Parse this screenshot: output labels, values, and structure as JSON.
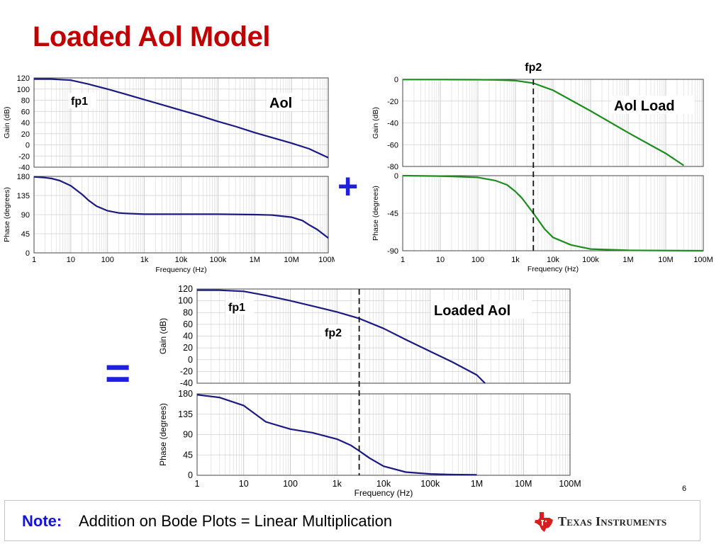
{
  "slide": {
    "title": "Loaded Aol Model",
    "page_number": "6",
    "note_label": "Note:",
    "note_text": "Addition on Bode Plots = Linear Multiplication",
    "plus_sign": "+",
    "equals_sign": "=",
    "logo_text": "Texas Instruments"
  },
  "chart_data": [
    {
      "id": "aol",
      "type": "line",
      "xlabel": "Frequency (Hz)",
      "xscale": "log",
      "xlim": [
        1,
        100000000
      ],
      "xticks": [
        {
          "v": 1,
          "label": "1"
        },
        {
          "v": 10,
          "label": "10"
        },
        {
          "v": 100,
          "label": "100"
        },
        {
          "v": 1000,
          "label": "1k"
        },
        {
          "v": 10000,
          "label": "10k"
        },
        {
          "v": 100000,
          "label": "100k"
        },
        {
          "v": 1000000,
          "label": "1M"
        },
        {
          "v": 10000000,
          "label": "10M"
        },
        {
          "v": 100000000,
          "label": "100M"
        }
      ],
      "color": "#1a1a80",
      "gain": {
        "ylabel": "Gain (dB)",
        "ylim": [
          -40,
          120
        ],
        "yticks": [
          -40,
          -20,
          0,
          20,
          40,
          60,
          80,
          100,
          120
        ],
        "x": [
          1,
          3,
          10,
          30,
          100,
          300,
          1000,
          3000,
          10000,
          30000,
          100000,
          300000,
          1000000,
          3000000,
          10000000,
          30000000,
          100000000
        ],
        "y": [
          118,
          118,
          116,
          109,
          100,
          91,
          81,
          72,
          62,
          53,
          42,
          33,
          22,
          13,
          3,
          -7,
          -23
        ]
      },
      "phase": {
        "ylabel": "Phase (degrees)",
        "ylim": [
          0,
          180
        ],
        "yticks": [
          0,
          45,
          90,
          135,
          180
        ],
        "x": [
          1,
          2,
          3,
          5,
          10,
          20,
          30,
          50,
          100,
          200,
          300,
          1000,
          10000,
          100000,
          1000000,
          3000000,
          10000000,
          20000000,
          30000000,
          50000000,
          100000000
        ],
        "y": [
          179,
          177,
          175,
          170,
          158,
          138,
          124,
          110,
          99,
          94,
          93,
          91,
          91,
          91,
          90,
          89,
          84,
          76,
          66,
          55,
          35
        ]
      },
      "annotations": [
        {
          "text": "fp1"
        },
        {
          "text": "Aol"
        }
      ]
    },
    {
      "id": "aol-load",
      "type": "line",
      "xlabel": "Frequency (Hz)",
      "xscale": "log",
      "xlim": [
        1,
        100000000
      ],
      "xticks": [
        {
          "v": 1,
          "label": "1"
        },
        {
          "v": 10,
          "label": "10"
        },
        {
          "v": 100,
          "label": "100"
        },
        {
          "v": 1000,
          "label": "1k"
        },
        {
          "v": 10000,
          "label": "10k"
        },
        {
          "v": 100000,
          "label": "100k"
        },
        {
          "v": 1000000,
          "label": "1M"
        },
        {
          "v": 10000000,
          "label": "10M"
        },
        {
          "v": 100000000,
          "label": "100M"
        }
      ],
      "color": "#1e8c1e",
      "gain": {
        "ylabel": "Gain (dB)",
        "ylim": [
          -80,
          0
        ],
        "yticks": [
          -80,
          -60,
          -40,
          -20,
          0
        ],
        "x": [
          1,
          10,
          100,
          300,
          1000,
          3000,
          10000,
          100000,
          1000000,
          10000000,
          30000000
        ],
        "y": [
          -0.2,
          -0.2,
          -0.3,
          -0.5,
          -1.2,
          -3.5,
          -10,
          -29,
          -49,
          -68,
          -79
        ]
      },
      "phase": {
        "ylabel": "Phase (degrees)",
        "ylim": [
          -90,
          0
        ],
        "yticks": [
          -90,
          -45,
          0
        ],
        "x": [
          1,
          10,
          100,
          300,
          600,
          1000,
          1500,
          3000,
          6000,
          10000,
          30000,
          100000,
          1000000,
          100000000
        ],
        "y": [
          0,
          -0.5,
          -2,
          -6,
          -11,
          -19,
          -27,
          -45,
          -64,
          -74,
          -83,
          -88,
          -89.5,
          -90
        ]
      },
      "markers": [
        {
          "text": "fp2",
          "x": 3000
        }
      ],
      "annotations": [
        {
          "text": "Aol Load"
        }
      ]
    },
    {
      "id": "loaded-aol",
      "type": "line",
      "xlabel": "Frequency (Hz)",
      "xscale": "log",
      "xlim": [
        1,
        100000000
      ],
      "xticks": [
        {
          "v": 1,
          "label": "1"
        },
        {
          "v": 10,
          "label": "10"
        },
        {
          "v": 100,
          "label": "100"
        },
        {
          "v": 1000,
          "label": "1k"
        },
        {
          "v": 10000,
          "label": "10k"
        },
        {
          "v": 100000,
          "label": "100k"
        },
        {
          "v": 1000000,
          "label": "1M"
        },
        {
          "v": 10000000,
          "label": "10M"
        },
        {
          "v": 100000000,
          "label": "100M"
        }
      ],
      "color": "#1a1a80",
      "gain": {
        "ylabel": "Gain (dB)",
        "ylim": [
          -40,
          120
        ],
        "yticks": [
          -40,
          -20,
          0,
          20,
          40,
          60,
          80,
          100,
          120
        ],
        "x": [
          1,
          3,
          10,
          30,
          100,
          300,
          1000,
          3000,
          10000,
          30000,
          100000,
          300000,
          1000000,
          1500000
        ],
        "y": [
          118,
          118,
          116,
          109,
          100,
          91,
          81,
          70,
          53,
          34,
          14,
          -4,
          -26,
          -40
        ]
      },
      "phase": {
        "ylabel": "Phase (degrees)",
        "ylim": [
          0,
          180
        ],
        "yticks": [
          0,
          45,
          90,
          135,
          180
        ],
        "x": [
          1,
          3,
          10,
          30,
          100,
          300,
          1000,
          2000,
          3000,
          5000,
          10000,
          30000,
          100000,
          300000,
          1000000
        ],
        "y": [
          178,
          172,
          154,
          118,
          102,
          94,
          80,
          66,
          54,
          38,
          20,
          7,
          3,
          1.5,
          1
        ]
      },
      "markers": [
        {
          "text": "fp2",
          "x": 3000
        }
      ],
      "annotations": [
        {
          "text": "fp1"
        },
        {
          "text": "fp2"
        },
        {
          "text": "Loaded Aol"
        }
      ]
    }
  ]
}
